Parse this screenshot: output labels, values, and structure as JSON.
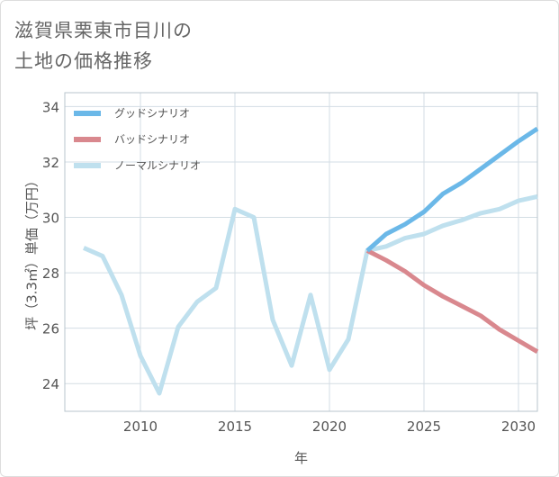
{
  "title_lines": [
    "滋賀県栗東市目川の",
    "土地の価格推移"
  ],
  "chart_data": {
    "type": "line",
    "xlabel": "年",
    "ylabel": "坪（3.3㎡）単価（万円）",
    "xlim": [
      2006,
      2031
    ],
    "ylim": [
      23,
      34.5
    ],
    "xticks": [
      2010,
      2015,
      2020,
      2025,
      2030
    ],
    "yticks": [
      24,
      26,
      28,
      30,
      32,
      34
    ],
    "grid": true,
    "legend_position": "top-left",
    "series": [
      {
        "name": "グッドシナリオ",
        "color": "#6bb8e8",
        "x": [
          2022,
          2023,
          2024,
          2025,
          2026,
          2027,
          2028,
          2029,
          2030,
          2031
        ],
        "values": [
          28.8,
          29.4,
          29.75,
          30.2,
          30.85,
          31.25,
          31.75,
          32.25,
          32.75,
          33.2
        ]
      },
      {
        "name": "バッドシナリオ",
        "color": "#d9888e",
        "x": [
          2022,
          2023,
          2024,
          2025,
          2026,
          2027,
          2028,
          2029,
          2030,
          2031
        ],
        "values": [
          28.8,
          28.45,
          28.05,
          27.55,
          27.15,
          26.8,
          26.45,
          25.95,
          25.55,
          25.15
        ]
      },
      {
        "name": "ノーマルシナリオ",
        "color": "#bfe0ee",
        "x": [
          2007,
          2008,
          2009,
          2010,
          2011,
          2012,
          2013,
          2014,
          2015,
          2016,
          2017,
          2018,
          2019,
          2020,
          2021,
          2022,
          2023,
          2024,
          2025,
          2026,
          2027,
          2028,
          2029,
          2030,
          2031
        ],
        "values": [
          28.9,
          28.6,
          27.2,
          25.0,
          23.65,
          26.05,
          26.95,
          27.45,
          30.3,
          30.0,
          26.3,
          24.65,
          27.2,
          24.5,
          25.6,
          28.8,
          28.95,
          29.25,
          29.4,
          29.7,
          29.9,
          30.15,
          30.3,
          30.6,
          30.75
        ]
      }
    ]
  }
}
